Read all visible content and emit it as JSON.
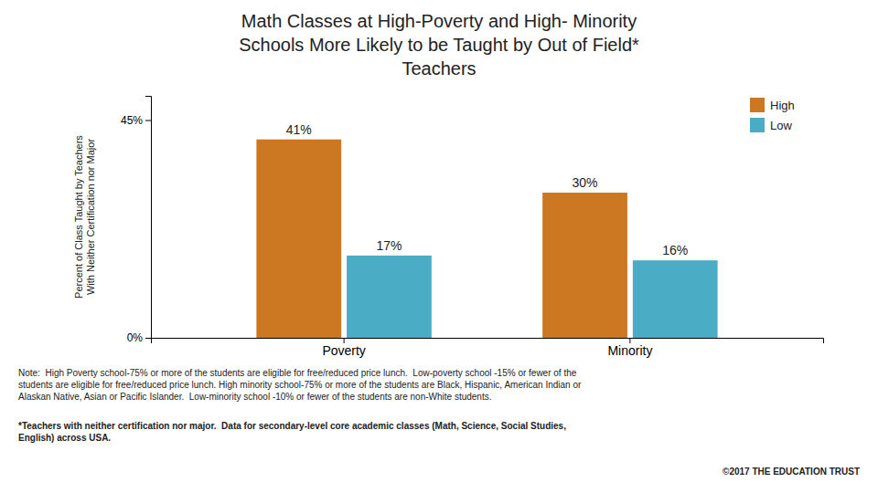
{
  "chart_data": {
    "type": "bar",
    "title": "Math Classes at High-Poverty and High- Minority\nSchools More Likely to be Taught by Out of Field*\nTeachers",
    "ylabel": "Percent of Class Taught by Teachers\nWith Neither Certification nor Major",
    "categories": [
      "Poverty",
      "Minority"
    ],
    "series": [
      {
        "name": "High",
        "color": "#CC7722",
        "values": [
          41,
          30
        ],
        "value_labels": [
          "41%",
          "30%"
        ]
      },
      {
        "name": "Low",
        "color": "#4BACC6",
        "values": [
          17,
          16
        ],
        "value_labels": [
          "17%",
          "16%"
        ]
      }
    ],
    "ylim": [
      0,
      50
    ],
    "yticks": [
      {
        "value": 0,
        "label": "0%"
      },
      {
        "value": 45,
        "label": "45%"
      }
    ],
    "grid": false,
    "legend": "top-right",
    "data_labels": true,
    "annotations": [
      "Note:  High Poverty school-75% or more of the students are eligible for free/reduced price lunch.  Low-poverty school -15% or fewer of the\nstudents are eligible for free/reduced price lunch. High minority school-75% or more of the students are Black, Hispanic, American Indian or\nAlaskan Native, Asian or Pacific Islander.  Low-minority school -10% or fewer of the students are non-White students.",
      "*Teachers with neither certification nor major.  Data for secondary-level core academic classes (Math, Science, Social Studies,\nEnglish) across USA.",
      "©2017 THE EDUCATION TRUST"
    ]
  }
}
